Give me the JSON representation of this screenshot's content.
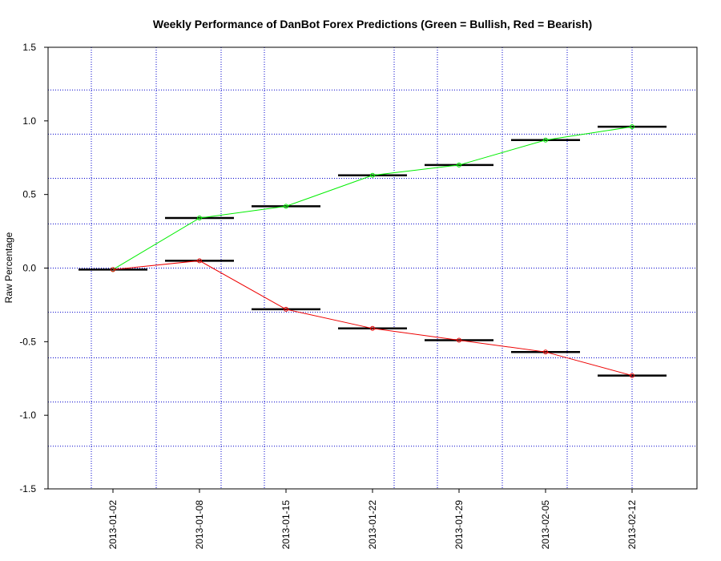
{
  "chart_data": {
    "type": "line",
    "title": "Weekly Performance of DanBot Forex Predictions (Green = Bullish, Red = Bearish)",
    "xlabel": "",
    "ylabel": "Raw Percentage",
    "x_positions": [
      0.5,
      1.5,
      2.5,
      3.5,
      4.5,
      5.5,
      6.5
    ],
    "categories": [
      "2013-01-02",
      "2013-01-08",
      "2013-01-15",
      "2013-01-22",
      "2013-01-29",
      "2013-02-05",
      "2013-02-12"
    ],
    "xlim": [
      -0.25,
      7.25
    ],
    "ylim": [
      -1.5,
      1.5
    ],
    "yticks": [
      -1.5,
      -1.0,
      -0.5,
      0.0,
      0.5,
      1.0,
      1.5
    ],
    "ytick_labels": [
      "-1.5",
      "-1.0",
      "-0.5",
      "0.0",
      "0.5",
      "1.0",
      "1.5"
    ],
    "grid": true,
    "grid_x": [
      0.25,
      1.0,
      1.75,
      2.25,
      3.75,
      4.25,
      5.0,
      5.75,
      6.5
    ],
    "grid_y": [
      -1.21,
      -0.91,
      -0.61,
      -0.3,
      0.0,
      0.3,
      0.61,
      0.91,
      1.21
    ],
    "grid_color": "#0000cc",
    "series": [
      {
        "color": "#00ee00",
        "values": [
          -0.01,
          0.34,
          0.42,
          0.63,
          0.7,
          0.87,
          0.96
        ]
      },
      {
        "color": "#ee0000",
        "values": [
          -0.01,
          0.05,
          -0.28,
          -0.41,
          -0.49,
          -0.57,
          -0.73
        ]
      }
    ]
  }
}
